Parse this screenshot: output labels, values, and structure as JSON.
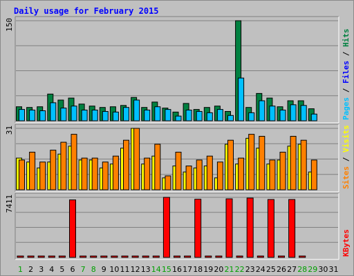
{
  "chart_data": {
    "type": "bar",
    "title": "Daily usage for February 2015",
    "categories": [
      "1",
      "2",
      "3",
      "4",
      "5",
      "6",
      "7",
      "8",
      "9",
      "10",
      "11",
      "12",
      "13",
      "14",
      "15",
      "16",
      "17",
      "18",
      "19",
      "20",
      "21",
      "22",
      "23",
      "24",
      "25",
      "26",
      "27",
      "28",
      "29",
      "30",
      "31"
    ],
    "weekend_days": [
      "1",
      "7",
      "8",
      "14",
      "15",
      "21",
      "22",
      "28",
      "29"
    ],
    "colors": {
      "title": "#0000ff",
      "hits": "#008040",
      "files": "#00c0ff",
      "pages": "#00c0ff",
      "visits": "#ffff00",
      "sites": "#ff8000",
      "kbytes": "#ff0000",
      "weekday_label": "#000000",
      "weekend_label": "#00a000",
      "grid": "#808080",
      "panel": "#c0c0c0"
    },
    "panels": [
      {
        "id": "pages-files-hits",
        "max_label": "150",
        "max": 150,
        "legend": [
          {
            "text": "Pages",
            "color": "#00c0ff"
          },
          {
            "text": " / ",
            "color": "#000000"
          },
          {
            "text": "Files",
            "color": "#0000ff"
          },
          {
            "text": " / ",
            "color": "#000000"
          },
          {
            "text": "Hits",
            "color": "#008040"
          }
        ],
        "series": [
          {
            "name": "Hits",
            "color": "#008040",
            "values": [
              21,
              20,
              21,
              40,
              31,
              34,
              25,
              22,
              20,
              21,
              23,
              35,
              20,
              28,
              19,
              13,
              26,
              17,
              20,
              22,
              14,
              150,
              20,
              41,
              34,
              21,
              30,
              30,
              18,
              0,
              0
            ]
          },
          {
            "name": "Files",
            "color": "#00c0ff",
            "values": [
              17,
              16,
              15,
              27,
              19,
              22,
              16,
              16,
              14,
              13,
              20,
              31,
              16,
              21,
              17,
              7,
              16,
              14,
              12,
              17,
              8,
              64,
              12,
              30,
              22,
              16,
              24,
              23,
              10,
              0,
              0
            ]
          }
        ]
      },
      {
        "id": "visits-sites",
        "max_label": "31",
        "max": 31,
        "legend": [
          {
            "text": "Sites",
            "color": "#ff8000"
          },
          {
            "text": " / ",
            "color": "#000000"
          },
          {
            "text": "Visits",
            "color": "#ffff00"
          }
        ],
        "series": [
          {
            "name": "Visits",
            "color": "#ffff00",
            "values": [
              16,
              14,
              11,
              14,
              18,
              22,
              15,
              15,
              11,
              13,
              21,
              31,
              13,
              17,
              6,
              12,
              9,
              11,
              12,
              6,
              23,
              13,
              26,
              21,
              13,
              15,
              22,
              23,
              9,
              0,
              0
            ]
          },
          {
            "name": "Sites",
            "color": "#ff8000",
            "values": [
              15,
              19,
              14,
              20,
              24,
              28,
              16,
              16,
              14,
              17,
              25,
              31,
              16,
              23,
              7,
              19,
              12,
              15,
              17,
              14,
              25,
              16,
              28,
              27,
              15,
              19,
              27,
              25,
              15,
              0,
              0
            ]
          }
        ]
      },
      {
        "id": "kbytes",
        "max_label": "7411",
        "max": 7411,
        "legend": [
          {
            "text": "KBytes",
            "color": "#ff0000"
          }
        ],
        "series": [
          {
            "name": "KBytes",
            "color": "#ff0000",
            "values": [
              90,
              90,
              120,
              160,
              80,
              7100,
              80,
              100,
              100,
              80,
              80,
              80,
              100,
              80,
              7411,
              100,
              80,
              7180,
              80,
              80,
              7230,
              80,
              7330,
              80,
              7150,
              80,
              7150,
              120,
              0,
              0,
              0
            ]
          }
        ]
      }
    ]
  }
}
